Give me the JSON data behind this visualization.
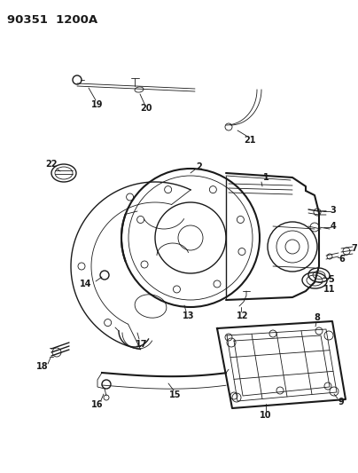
{
  "title": "90351  1200A",
  "bg_color": "#ffffff",
  "line_color": "#1a1a1a",
  "fig_width": 4.04,
  "fig_height": 5.33,
  "dpi": 100
}
